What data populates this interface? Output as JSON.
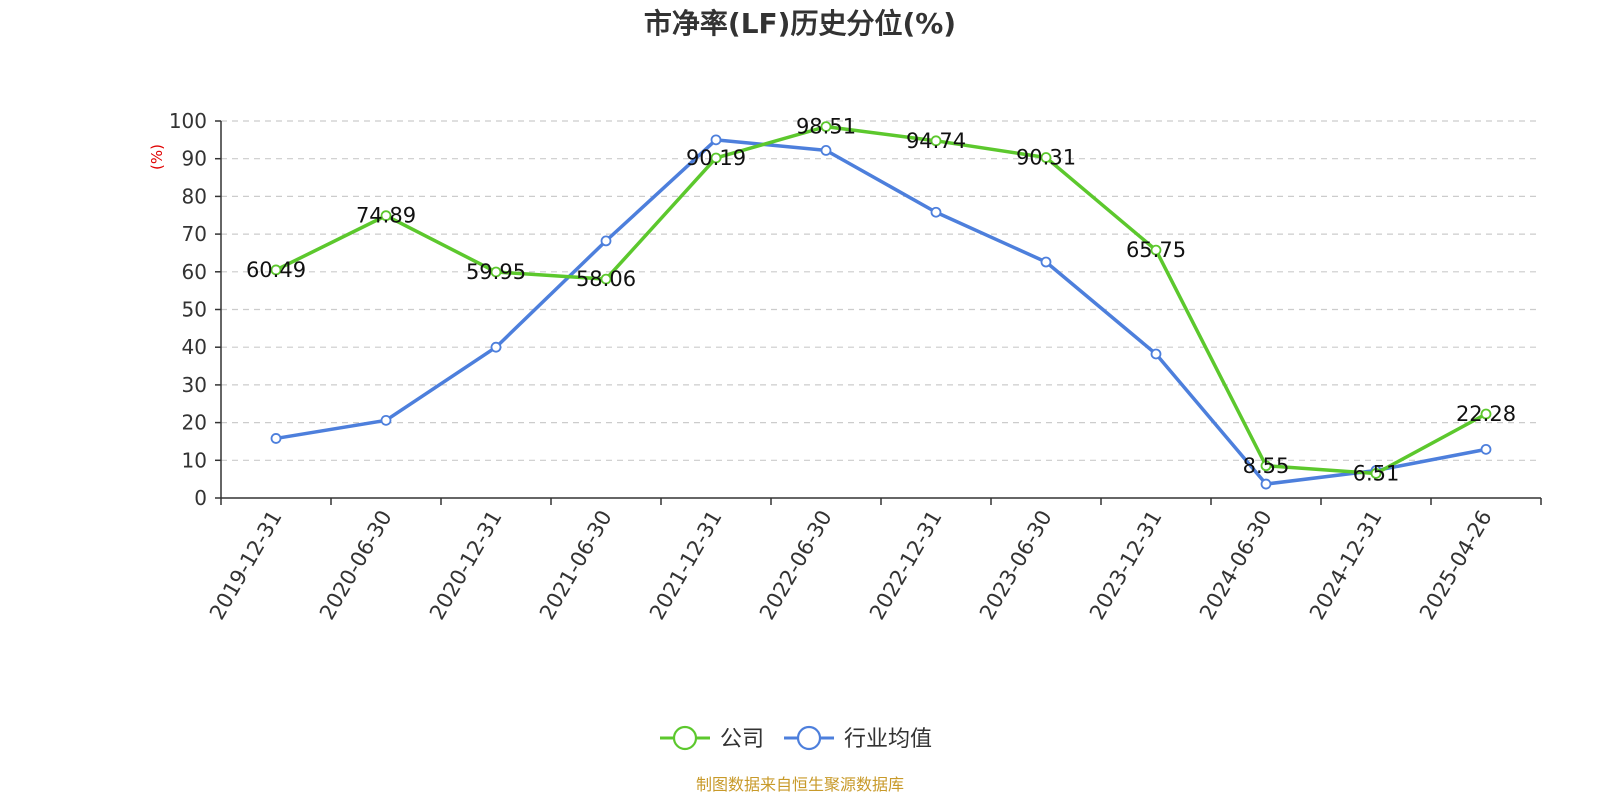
{
  "chart_data": {
    "type": "line",
    "title": "市净率(LF)历史分位(%)",
    "ylabel": "(%)",
    "xlabel": "",
    "ylim": [
      0,
      100
    ],
    "yticks": [
      0,
      10,
      20,
      30,
      40,
      50,
      60,
      70,
      80,
      90,
      100
    ],
    "grid": true,
    "legend_position": "bottom",
    "categories": [
      "2019-12-31",
      "2020-06-30",
      "2020-12-31",
      "2021-06-30",
      "2021-12-31",
      "2022-06-30",
      "2022-12-31",
      "2023-06-30",
      "2023-12-31",
      "2024-06-30",
      "2024-12-31",
      "2025-04-26"
    ],
    "series": [
      {
        "name": "公司",
        "color": "#5cc82d",
        "show_labels": true,
        "values": [
          60.49,
          74.89,
          59.95,
          58.06,
          90.19,
          98.51,
          94.74,
          90.31,
          65.75,
          8.55,
          6.51,
          22.28
        ],
        "labels": [
          "60.49",
          "74.89",
          "59.95",
          "58.06",
          "90.19",
          "98.51",
          "94.74",
          "90.31",
          "65.75",
          "8.55",
          "6.51",
          "22.28"
        ]
      },
      {
        "name": "行业均值",
        "color": "#4d7fdc",
        "show_labels": false,
        "values": [
          15.8,
          20.6,
          40.0,
          68.2,
          95.0,
          92.2,
          75.8,
          62.6,
          38.2,
          3.7,
          7.3,
          12.9
        ]
      }
    ]
  },
  "source": "制图数据来自恒生聚源数据库"
}
